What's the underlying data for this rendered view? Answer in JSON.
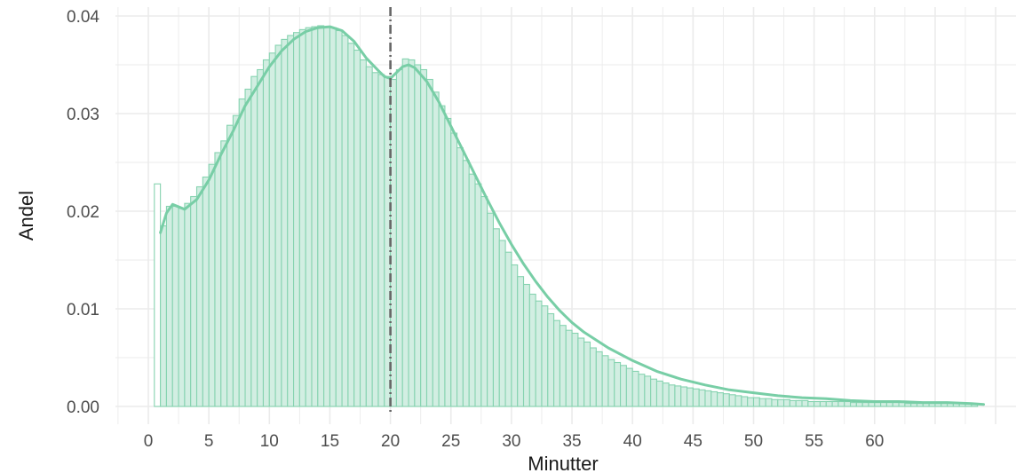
{
  "chart_data": {
    "type": "bar",
    "title": "",
    "xlabel": "Minutter",
    "ylabel": "Andel",
    "xlim": [
      0,
      69
    ],
    "ylim": [
      0,
      0.04
    ],
    "x_ticks": [
      0,
      5,
      10,
      15,
      20,
      25,
      30,
      35,
      40,
      45,
      50,
      55,
      60
    ],
    "y_ticks": [
      0,
      0.01,
      0.02,
      0.03,
      0.04
    ],
    "y_tick_labels": [
      "0.00",
      "0.01",
      "0.02",
      "0.03",
      "0.04"
    ],
    "grid": true,
    "bin_width": 0.5,
    "series": [
      {
        "kind": "histogram",
        "bin_starts": [
          0.5,
          1.0,
          1.5,
          2.0,
          2.5,
          3.0,
          3.5,
          4.0,
          4.5,
          5.0,
          5.5,
          6.0,
          6.5,
          7.0,
          7.5,
          8.0,
          8.5,
          9.0,
          9.5,
          10.0,
          10.5,
          11.0,
          11.5,
          12.0,
          12.5,
          13.0,
          13.5,
          14.0,
          14.5,
          15.0,
          15.5,
          16.0,
          16.5,
          17.0,
          17.5,
          18.0,
          18.5,
          19.0,
          19.5,
          20.0,
          20.5,
          21.0,
          21.5,
          22.0,
          22.5,
          23.0,
          23.5,
          24.0,
          24.5,
          25.0,
          25.5,
          26.0,
          26.5,
          27.0,
          27.5,
          28.0,
          28.5,
          29.0,
          29.5,
          30.0,
          30.5,
          31.0,
          31.5,
          32.0,
          32.5,
          33.0,
          33.5,
          34.0,
          34.5,
          35.0,
          35.5,
          36.0,
          36.5,
          37.0,
          37.5,
          38.0,
          38.5,
          39.0,
          39.5,
          40.0,
          40.5,
          41.0,
          41.5,
          42.0,
          42.5,
          43.0,
          43.5,
          44.0,
          44.5,
          45.0,
          45.5,
          46.0,
          46.5,
          47.0,
          47.5,
          48.0,
          48.5,
          49.0,
          49.5,
          50.0,
          50.5,
          51.0,
          51.5,
          52.0,
          52.5,
          53.0,
          53.5,
          54.0,
          54.5,
          55.0,
          55.5,
          56.0,
          56.5,
          57.0,
          57.5,
          58.0,
          58.5,
          59.0,
          59.5,
          60.0,
          60.5,
          61.0,
          61.5,
          62.0,
          62.5,
          63.0,
          63.5,
          64.0,
          64.5,
          65.0,
          65.5,
          66.0,
          66.5,
          67.0,
          67.5,
          68.0,
          68.5
        ],
        "values": [
          0.0228,
          0.0185,
          0.0205,
          0.0205,
          0.0203,
          0.0208,
          0.0215,
          0.0225,
          0.0235,
          0.0248,
          0.026,
          0.0272,
          0.0288,
          0.0298,
          0.0315,
          0.0325,
          0.0338,
          0.0345,
          0.0355,
          0.0362,
          0.037,
          0.0376,
          0.038,
          0.0383,
          0.0386,
          0.0388,
          0.0389,
          0.039,
          0.0389,
          0.0388,
          0.0385,
          0.038,
          0.0372,
          0.0365,
          0.0355,
          0.0348,
          0.0342,
          0.034,
          0.0338,
          0.0335,
          0.0345,
          0.0356,
          0.0355,
          0.035,
          0.0345,
          0.0335,
          0.0322,
          0.0308,
          0.0295,
          0.028,
          0.0265,
          0.0252,
          0.0238,
          0.0228,
          0.0215,
          0.0198,
          0.0182,
          0.017,
          0.0158,
          0.0145,
          0.0133,
          0.0125,
          0.0115,
          0.0108,
          0.0103,
          0.0095,
          0.0088,
          0.0083,
          0.0078,
          0.0075,
          0.007,
          0.0066,
          0.006,
          0.0056,
          0.0052,
          0.0048,
          0.0045,
          0.0042,
          0.0039,
          0.0036,
          0.0033,
          0.0031,
          0.0028,
          0.0026,
          0.0024,
          0.0022,
          0.0021,
          0.002,
          0.0019,
          0.0018,
          0.0017,
          0.0016,
          0.0015,
          0.0014,
          0.0013,
          0.0012,
          0.0011,
          0.001,
          0.0009,
          0.0009,
          0.0008,
          0.0008,
          0.0007,
          0.0007,
          0.0007,
          0.0006,
          0.0006,
          0.0006,
          0.0005,
          0.0005,
          0.0005,
          0.0005,
          0.0005,
          0.0005,
          0.0005,
          0.0004,
          0.0004,
          0.0004,
          0.0004,
          0.0004,
          0.0004,
          0.0004,
          0.0004,
          0.0004,
          0.0003,
          0.0003,
          0.0003,
          0.0003,
          0.0003,
          0.0003,
          0.0003,
          0.0003,
          0.0003,
          0.0003,
          0.0003,
          0.0002
        ]
      },
      {
        "kind": "density",
        "x": [
          1.0,
          1.5,
          2.0,
          3.0,
          4.0,
          5.0,
          6.0,
          7.0,
          8.0,
          9.0,
          10.0,
          11.0,
          12.0,
          13.0,
          14.0,
          15.0,
          16.0,
          17.0,
          18.0,
          19.0,
          19.5,
          20.0,
          20.5,
          21.0,
          21.5,
          22.0,
          23.0,
          24.0,
          25.0,
          26.0,
          27.0,
          28.0,
          29.0,
          30.0,
          31.0,
          32.0,
          33.0,
          34.0,
          35.0,
          36.0,
          38.0,
          40.0,
          42.0,
          44.0,
          46.0,
          48.0,
          50.0,
          52.0,
          54.0,
          56.0,
          58.0,
          60.0,
          62.0,
          64.0,
          66.0,
          68.0,
          69.0
        ],
        "y": [
          0.0178,
          0.0198,
          0.0207,
          0.0202,
          0.0212,
          0.0232,
          0.0258,
          0.0282,
          0.0308,
          0.0328,
          0.0348,
          0.0364,
          0.0376,
          0.0384,
          0.0388,
          0.0389,
          0.0385,
          0.0374,
          0.0357,
          0.0344,
          0.0338,
          0.0336,
          0.0342,
          0.0348,
          0.035,
          0.0347,
          0.0333,
          0.0312,
          0.0287,
          0.0262,
          0.0237,
          0.0212,
          0.0188,
          0.0166,
          0.0146,
          0.0128,
          0.0112,
          0.0098,
          0.0086,
          0.0076,
          0.006,
          0.0047,
          0.0036,
          0.0028,
          0.0022,
          0.0017,
          0.0014,
          0.0011,
          0.0009,
          0.0008,
          0.0006,
          0.0005,
          0.0005,
          0.0004,
          0.0004,
          0.0003,
          0.0002
        ]
      }
    ],
    "reference_line": {
      "x": 20,
      "style": "dashed"
    },
    "colors": {
      "bar_fill": "#d2eee2",
      "bar_stroke": "#86d3b0",
      "density_line": "#78cea6",
      "reference_line": "#666666",
      "grid": "#ebebeb",
      "background": "#ffffff"
    }
  }
}
